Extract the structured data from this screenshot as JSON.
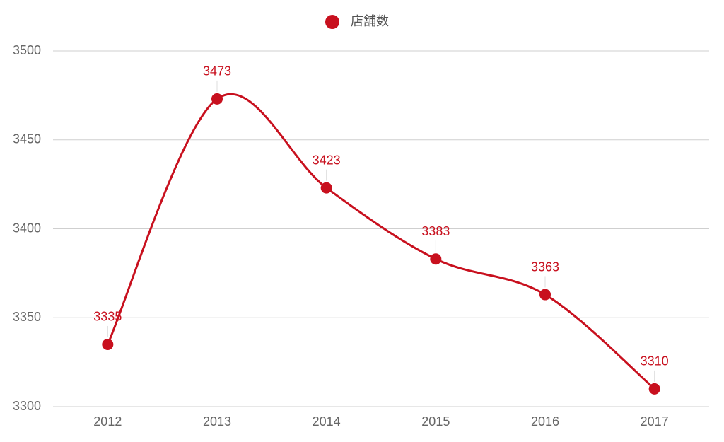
{
  "chart_data": {
    "type": "line",
    "smooth": true,
    "categories": [
      "2012",
      "2013",
      "2014",
      "2015",
      "2016",
      "2017"
    ],
    "series": [
      {
        "name": "店舗数",
        "color": "#c8101e",
        "values": [
          3335,
          3473,
          3423,
          3383,
          3363,
          3310
        ]
      }
    ],
    "ylim": [
      3300,
      3500
    ],
    "yticks": [
      3300,
      3350,
      3400,
      3450,
      3500
    ],
    "grid": true,
    "legend": "top",
    "data_labels": true
  }
}
